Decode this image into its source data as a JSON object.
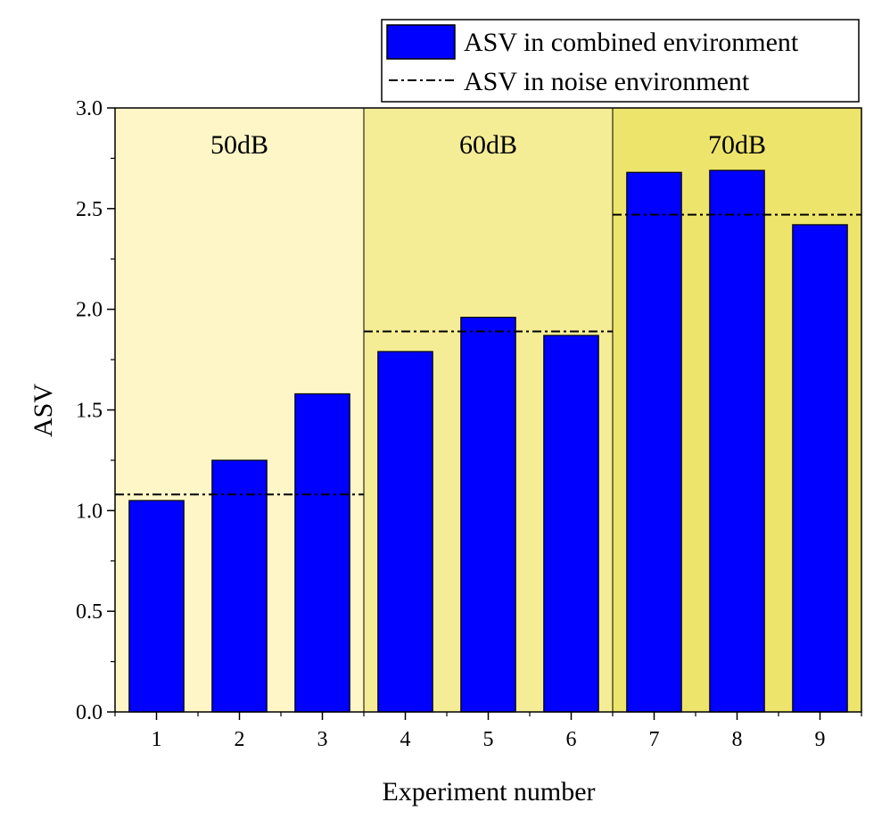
{
  "chart_data": {
    "type": "bar",
    "title": "",
    "xlabel": "Experiment number",
    "ylabel": "ASV",
    "categories": [
      "1",
      "2",
      "3",
      "4",
      "5",
      "6",
      "7",
      "8",
      "9"
    ],
    "series": [
      {
        "name": "ASV in combined environment",
        "values": [
          1.05,
          1.25,
          1.58,
          1.79,
          1.96,
          1.87,
          2.68,
          2.69,
          2.42
        ],
        "color": "#0000ff"
      }
    ],
    "reference_lines": [
      {
        "name": "ASV in noise environment",
        "group": "50dB",
        "value": 1.08
      },
      {
        "name": "ASV in noise environment",
        "group": "60dB",
        "value": 1.89
      },
      {
        "name": "ASV in noise environment",
        "group": "70dB",
        "value": 2.47
      }
    ],
    "groups": [
      {
        "label": "50dB",
        "from": 1,
        "to": 3,
        "color": "#fef6c6"
      },
      {
        "label": "60dB",
        "from": 4,
        "to": 6,
        "color": "#f5ec96"
      },
      {
        "label": "70dB",
        "from": 7,
        "to": 9,
        "color": "#ede46b"
      }
    ],
    "ylim": [
      0,
      3.0
    ],
    "yticks": [
      "0.0",
      "0.5",
      "1.0",
      "1.5",
      "2.0",
      "2.5",
      "3.0"
    ],
    "legend": {
      "position": "top-right",
      "entries": [
        "ASV in combined environment",
        "ASV in noise environment"
      ]
    },
    "grid": false
  }
}
